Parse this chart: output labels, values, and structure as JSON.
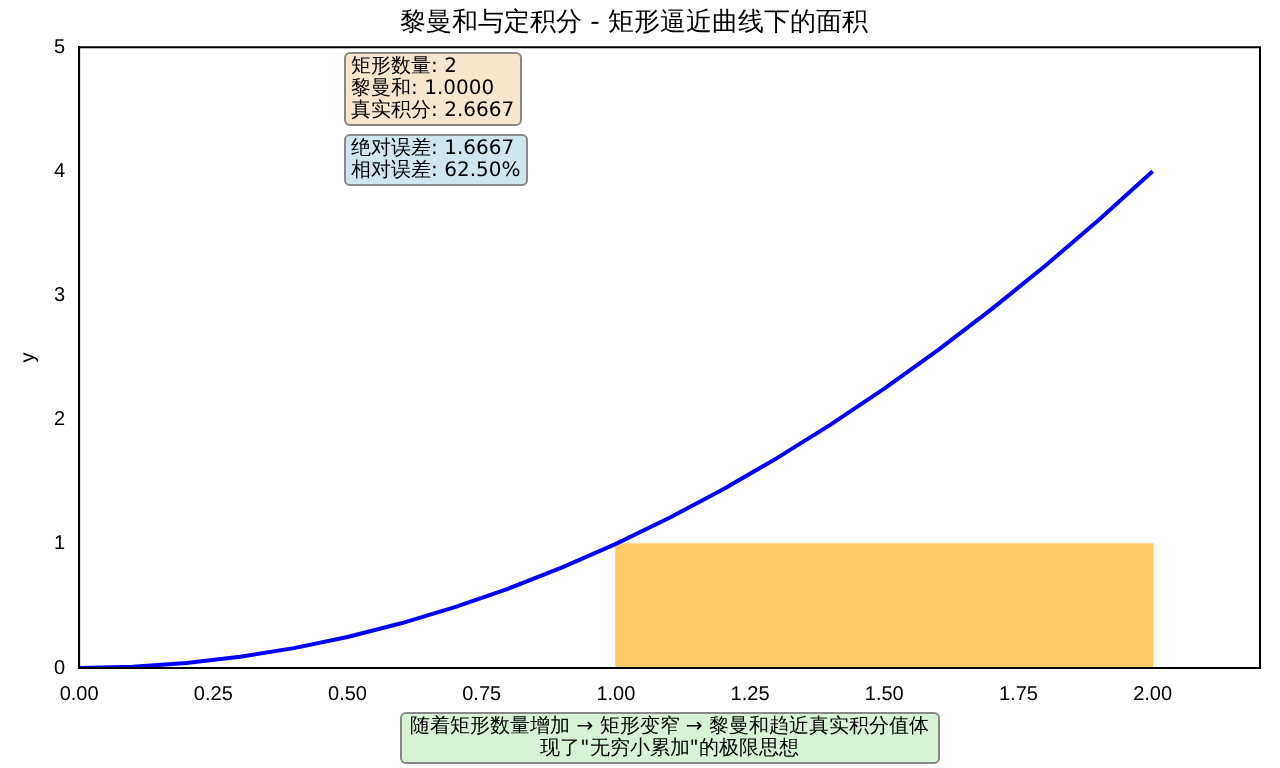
{
  "chart_data": {
    "type": "line",
    "title": "黎曼和与定积分 - 矩形逼近曲线下的面积",
    "ylabel": "y",
    "series": [
      {
        "type": "bar",
        "color": "#ffc966",
        "x": [
          0.5,
          1.5
        ],
        "values": [
          0,
          1
        ]
      },
      {
        "color": "#0000ff",
        "x": [
          0,
          0.1,
          0.2,
          0.3,
          0.4,
          0.5,
          0.6,
          0.7,
          0.8,
          0.9,
          1,
          1.1,
          1.2,
          1.3,
          1.4,
          1.5,
          1.6,
          1.7,
          1.8,
          1.9,
          2
        ],
        "values": [
          0,
          0.01,
          0.04,
          0.09,
          0.16,
          0.25,
          0.36,
          0.49,
          0.64,
          0.81,
          1,
          1.21,
          1.44,
          1.69,
          1.96,
          2.25,
          2.56,
          2.89,
          3.24,
          3.61,
          4
        ]
      }
    ],
    "xlim": [
      0,
      2.2
    ],
    "ylim": [
      0,
      5
    ],
    "xticks": [
      {
        "value": 0,
        "label": "0.00"
      },
      {
        "value": 0.25,
        "label": "0.25"
      },
      {
        "value": 0.5,
        "label": "0.50"
      },
      {
        "value": 0.75,
        "label": "0.75"
      },
      {
        "value": 1,
        "label": "1.00"
      },
      {
        "value": 1.25,
        "label": "1.25"
      },
      {
        "value": 1.5,
        "label": "1.50"
      },
      {
        "value": 1.75,
        "label": "1.75"
      },
      {
        "value": 2,
        "label": "2.00"
      }
    ],
    "yticks": [
      0,
      1,
      2,
      3,
      4,
      5
    ],
    "annotations": [
      "矩形数量: 2\n黎曼和: 1.0000\n真实积分: 2.6667",
      "绝对误差: 1.6667\n相对误差: 62.50%",
      "随着矩形数量增加 → 矩形变窄 → 黎曼和趋近真实积分值体现了\"无穷小累加\"的极限思想"
    ],
    "grid": false,
    "legend": false,
    "marker": "none",
    "line_style": "solid"
  }
}
